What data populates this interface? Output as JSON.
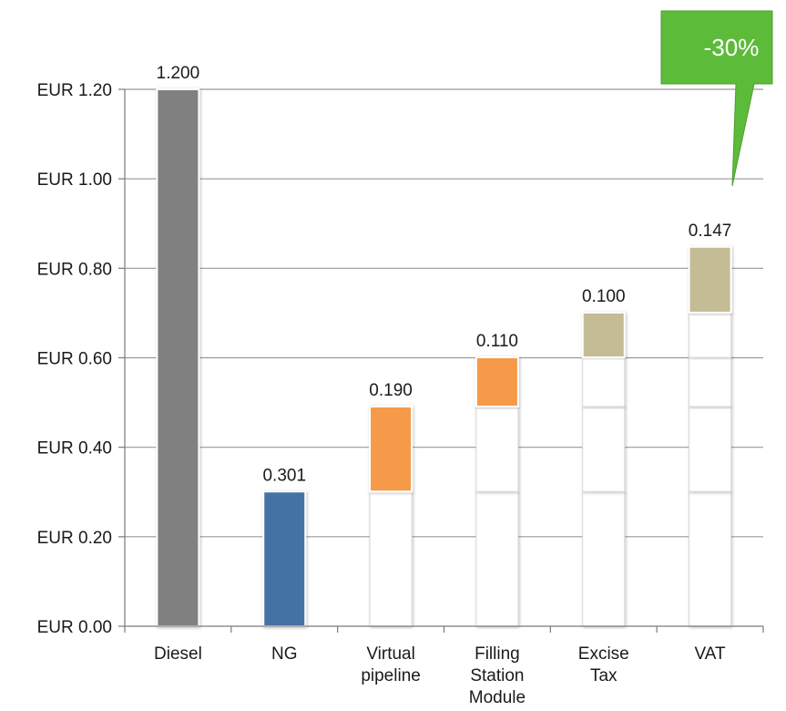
{
  "chart_data": {
    "type": "bar",
    "subtype": "waterfall",
    "title": "",
    "xlabel": "",
    "ylabel": "",
    "ylim": [
      0,
      1.2
    ],
    "y_ticks": [
      "EUR 0.00",
      "EUR 0.20",
      "EUR 0.40",
      "EUR 0.60",
      "EUR 0.80",
      "EUR 1.00",
      "EUR 1.20"
    ],
    "y_tick_values": [
      0,
      0.2,
      0.4,
      0.6,
      0.8,
      1.0,
      1.2
    ],
    "grid": true,
    "categories": [
      [
        "Diesel"
      ],
      [
        "NG"
      ],
      [
        "Virtual",
        "pipeline"
      ],
      [
        "Filling",
        "Station",
        "Module"
      ],
      [
        "Excise",
        "Tax"
      ],
      [
        "VAT"
      ]
    ],
    "values": [
      1.2,
      0.301,
      0.19,
      0.11,
      0.1,
      0.147
    ],
    "data_labels": [
      "1.200",
      "0.301",
      "0.190",
      "0.110",
      "0.100",
      "0.147"
    ],
    "bar_colors": [
      "#808080",
      "#4472a4",
      "#f59a4a",
      "#f59a4a",
      "#c4bc94",
      "#c4bc94"
    ],
    "annotation": {
      "text": "-30%",
      "color": "#5dbb3a"
    }
  }
}
